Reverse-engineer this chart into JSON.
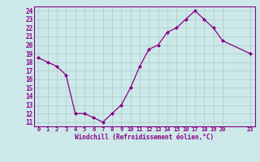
{
  "x_values": [
    0,
    1,
    2,
    3,
    4,
    5,
    6,
    7,
    8,
    9,
    10,
    11,
    12,
    13,
    14,
    15,
    16,
    17,
    18,
    19,
    20,
    23
  ],
  "y_values": [
    18.5,
    18.0,
    17.5,
    16.5,
    12.0,
    12.0,
    11.5,
    11.0,
    12.0,
    13.0,
    15.0,
    17.5,
    19.5,
    20.0,
    21.5,
    22.0,
    23.0,
    24.0,
    23.0,
    22.0,
    20.5,
    19.0
  ],
  "line_color": "#880088",
  "marker": "D",
  "marker_size": 2.5,
  "bg_color": "#cce8e8",
  "grid_color": "#aacccc",
  "axis_label_color": "#880088",
  "tick_color": "#880088",
  "spine_color": "#880088",
  "xlabel": "Windchill (Refroidissement éolien,°C)",
  "xlim": [
    -0.5,
    23.5
  ],
  "ylim": [
    10.5,
    24.5
  ],
  "yticks": [
    11,
    12,
    13,
    14,
    15,
    16,
    17,
    18,
    19,
    20,
    21,
    22,
    23,
    24
  ],
  "xtick_positions": [
    0,
    1,
    2,
    3,
    4,
    5,
    6,
    7,
    8,
    9,
    10,
    11,
    12,
    13,
    14,
    15,
    16,
    17,
    18,
    19,
    20,
    23
  ],
  "xtick_labels": [
    "0",
    "1",
    "2",
    "3",
    "4",
    "5",
    "6",
    "7",
    "8",
    "9",
    "10",
    "11",
    "12",
    "13",
    "14",
    "15",
    "16",
    "17",
    "18",
    "19",
    "20",
    "23"
  ]
}
